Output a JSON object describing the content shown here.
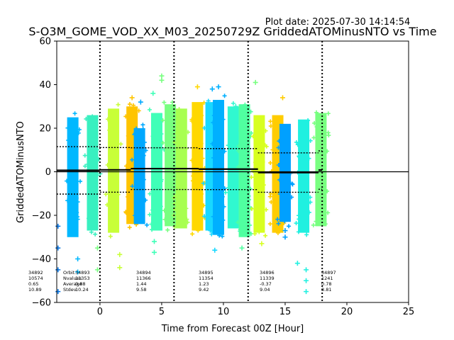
{
  "plot_date": "Plot date: 2025-07-30 14:14:54",
  "chart_data": {
    "type": "scatter",
    "title": "S-O3M_GOME_VOD_XX_M03_20250729Z GriddedATOMinusNTO vs Time",
    "xlabel": "Time from Forecast 00Z [Hour]",
    "ylabel": "GriddedATOMinusNTO",
    "xlim": [
      -3.5,
      25
    ],
    "ylim": [
      -60,
      60
    ],
    "xticks": [
      0,
      5,
      10,
      15,
      20,
      25
    ],
    "yticks": [
      -60,
      -40,
      -20,
      0,
      20,
      40,
      60
    ],
    "grid": false,
    "zero_line": 0,
    "orbit_boundaries": [
      0,
      6,
      12,
      18
    ],
    "stats_labels": [
      "Orbit",
      "Nvalues",
      "Average",
      "Stdev"
    ],
    "orbits": [
      {
        "orbit": "34892",
        "nvalues": "10574",
        "average": "0.65",
        "stdev": "10.89",
        "x_range": [
          -3.5,
          0
        ],
        "mean": 0.65,
        "stdev_value": 10.89
      },
      {
        "orbit": "34893",
        "nvalues": "11353",
        "average": "0.88",
        "stdev": "10.24",
        "x_range": [
          0,
          2.5
        ],
        "mean": 0.88,
        "stdev_value": 10.24
      },
      {
        "orbit": "34894",
        "nvalues": "11366",
        "average": "1.44",
        "stdev": "9.58",
        "x_range": [
          2.5,
          8
        ],
        "mean": 1.44,
        "stdev_value": 9.58
      },
      {
        "orbit": "34895",
        "nvalues": "11354",
        "average": "1.23",
        "stdev": "9.42",
        "x_range": [
          8,
          12.8
        ],
        "mean": 1.23,
        "stdev_value": 9.42
      },
      {
        "orbit": "34896",
        "nvalues": "11339",
        "average": "-0.37",
        "stdev": "9.04",
        "x_range": [
          12.8,
          17.7
        ],
        "mean": -0.37,
        "stdev_value": 9.04
      },
      {
        "orbit": "34897",
        "nvalues": "1241",
        "average": "0.78",
        "stdev": "8.81",
        "x_range": [
          17.7,
          18
        ],
        "mean": 0.78,
        "stdev_value": 8.81
      }
    ],
    "clusters": [
      {
        "x": -2.2,
        "low": -30,
        "high": 25,
        "color": "#00b8ff"
      },
      {
        "x": -0.6,
        "low": -27,
        "high": 26,
        "color": "#38f0c0"
      },
      {
        "x": 1.1,
        "low": -28,
        "high": 29,
        "color": "#c8ff38"
      },
      {
        "x": 2.6,
        "low": -24,
        "high": 30,
        "color": "#ffc400"
      },
      {
        "x": 3.2,
        "low": -24,
        "high": 20,
        "color": "#00a8ff"
      },
      {
        "x": 4.6,
        "low": -27,
        "high": 27,
        "color": "#40ffb8"
      },
      {
        "x": 5.7,
        "low": -25,
        "high": 31,
        "color": "#78ff80"
      },
      {
        "x": 6.6,
        "low": -26,
        "high": 29,
        "color": "#a8ff50"
      },
      {
        "x": 7.9,
        "low": -27,
        "high": 32,
        "color": "#ffd800"
      },
      {
        "x": 9.0,
        "low": -27,
        "high": 32,
        "color": "#18d8ff"
      },
      {
        "x": 9.6,
        "low": -29,
        "high": 33,
        "color": "#00b0ff"
      },
      {
        "x": 10.8,
        "low": -26,
        "high": 30,
        "color": "#30f8d0"
      },
      {
        "x": 11.7,
        "low": -30,
        "high": 31,
        "color": "#50ffa0"
      },
      {
        "x": 12.9,
        "low": -28,
        "high": 26,
        "color": "#d8ff20"
      },
      {
        "x": 14.4,
        "low": -28,
        "high": 26,
        "color": "#ffcc00"
      },
      {
        "x": 15.0,
        "low": -23,
        "high": 22,
        "color": "#00a0ff"
      },
      {
        "x": 16.5,
        "low": -28,
        "high": 24,
        "color": "#20f0e0"
      },
      {
        "x": 17.9,
        "low": -25,
        "high": 27,
        "color": "#78ff80"
      }
    ]
  }
}
